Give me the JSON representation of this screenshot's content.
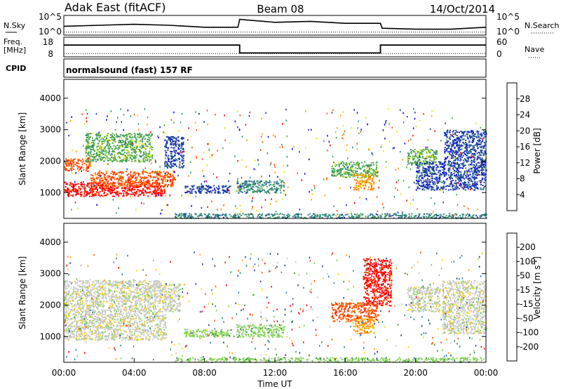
{
  "header": {
    "station": "Adak East (fitACF)",
    "beam": "Beam 08",
    "date": "14/Oct/2014"
  },
  "chart_data": [
    {
      "type": "line",
      "panel": "noise",
      "left_label": "N.Sky",
      "right_label": "N.Search",
      "left_ticks": [
        "10^5",
        "10^0"
      ],
      "right_ticks": [
        "10^5",
        "10^0"
      ],
      "x_hours": [
        0,
        2,
        4,
        6,
        8,
        9.9,
        10,
        12,
        14,
        16,
        18,
        18.1,
        20,
        22,
        24
      ],
      "n_sky": [
        0.45,
        0.5,
        0.55,
        0.5,
        0.4,
        0.4,
        0.8,
        0.65,
        0.7,
        0.6,
        0.6,
        0.35,
        0.3,
        0.3,
        0.4
      ],
      "n_search": [
        0.15,
        0.15,
        0.15,
        0.15,
        0.15,
        0.15,
        0.15,
        0.15,
        0.15,
        0.15,
        0.15,
        0.15,
        0.15,
        0.15,
        0.15
      ]
    },
    {
      "type": "line",
      "panel": "frequency",
      "left_label_1": "Freq.",
      "left_label_2": "[MHz]",
      "right_label": "Nave",
      "left_ticks": [
        "18",
        "8"
      ],
      "right_ticks": [
        "60",
        "0"
      ],
      "x_hours": [
        0,
        10,
        10,
        18,
        18,
        24
      ],
      "freq_mhz": [
        14,
        14,
        10,
        10,
        14,
        14
      ],
      "nave": [
        10,
        10,
        10,
        10,
        10,
        10
      ]
    },
    {
      "type": "heatmap",
      "panel": "cpid",
      "label": "CPID",
      "program": "normalsound (fast) 157 RF"
    },
    {
      "type": "heatmap",
      "panel": "power",
      "ylabel": "Slant Range [km]",
      "colorbar_label": "Power [dB]",
      "colorbar_ticks": [
        "28",
        "24",
        "20",
        "16",
        "12",
        "8",
        "4"
      ],
      "colorbar_colors": [
        "#ff0000",
        "#ff5000",
        "#ff9a00",
        "#e8e800",
        "#4aa84a",
        "#2f8a7a",
        "#1a3aa0",
        "#0000ff"
      ],
      "y_ticks": [
        "4000",
        "3000",
        "2000",
        "1000"
      ],
      "ylim": [
        180,
        4600
      ],
      "echo_regions": [
        {
          "t0": 0,
          "t1": 5.7,
          "r0": 900,
          "r1": 1350,
          "level": 0
        },
        {
          "t0": 1.5,
          "t1": 6.3,
          "r0": 1200,
          "r1": 1700,
          "level": 1
        },
        {
          "t0": 0,
          "t1": 1.5,
          "r0": 1700,
          "r1": 2100,
          "level": 1
        },
        {
          "t0": 1.2,
          "t1": 5.0,
          "r0": 2000,
          "r1": 2900,
          "level": 4
        },
        {
          "t0": 5.7,
          "t1": 6.8,
          "r0": 1800,
          "r1": 2800,
          "level": 6
        },
        {
          "t0": 6.8,
          "t1": 9.5,
          "r0": 1000,
          "r1": 1250,
          "level": 6
        },
        {
          "t0": 9.8,
          "t1": 12.5,
          "r0": 1000,
          "r1": 1400,
          "level": 5
        },
        {
          "t0": 15.2,
          "t1": 17.8,
          "r0": 1500,
          "r1": 2000,
          "level": 4
        },
        {
          "t0": 16.4,
          "t1": 17.6,
          "r0": 1100,
          "r1": 1600,
          "level": 2
        },
        {
          "t0": 19.5,
          "t1": 21.2,
          "r0": 1900,
          "r1": 2400,
          "level": 4
        },
        {
          "t0": 20.0,
          "t1": 24.0,
          "r0": 1100,
          "r1": 2000,
          "level": 6
        },
        {
          "t0": 21.6,
          "t1": 24.0,
          "r0": 2000,
          "r1": 3000,
          "level": 6
        },
        {
          "t0": 6.3,
          "t1": 24.0,
          "r0": 200,
          "r1": 350,
          "level": 5
        }
      ]
    },
    {
      "type": "heatmap",
      "panel": "velocity",
      "ylabel": "Slant Range [km]",
      "colorbar_label": "Velocity [m s",
      "colorbar_label_sup": "-1",
      "colorbar_label_end": "]",
      "colorbar_ticks": [
        "200",
        "100",
        "50",
        "15",
        "-15",
        "-50",
        "-100",
        "-200"
      ],
      "colorbar_colors": [
        "#1a3aa0",
        "#2a7ab0",
        "#2f8a4a",
        "#7ed44a",
        "#c8c8c8",
        "#ffd200",
        "#ff9a00",
        "#ff5000",
        "#ff0000"
      ],
      "y_ticks": [
        "4000",
        "3000",
        "2000",
        "1000"
      ],
      "ylim": [
        180,
        4600
      ],
      "x_ticks": [
        "00:00",
        "04:00",
        "08:00",
        "12:00",
        "16:00",
        "20:00",
        "00:00"
      ],
      "xlabel": "Time UT",
      "echo_regions": [
        {
          "t0": 0,
          "t1": 5.8,
          "r0": 900,
          "r1": 1700,
          "level": 4
        },
        {
          "t0": 0,
          "t1": 5.5,
          "r0": 1700,
          "r1": 2800,
          "level": 4
        },
        {
          "t0": 5.4,
          "t1": 6.6,
          "r0": 1800,
          "r1": 2700,
          "level": 4
        },
        {
          "t0": 6.8,
          "t1": 9.5,
          "r0": 1000,
          "r1": 1250,
          "level": 3
        },
        {
          "t0": 9.8,
          "t1": 12.5,
          "r0": 1000,
          "r1": 1400,
          "level": 3
        },
        {
          "t0": 15.2,
          "t1": 17.8,
          "r0": 1500,
          "r1": 2100,
          "level": 7
        },
        {
          "t0": 16.4,
          "t1": 17.6,
          "r0": 1100,
          "r1": 1600,
          "level": 6
        },
        {
          "t0": 17.0,
          "t1": 18.6,
          "r0": 2000,
          "r1": 3500,
          "level": 8
        },
        {
          "t0": 19.5,
          "t1": 21.4,
          "r0": 1800,
          "r1": 2600,
          "level": 4
        },
        {
          "t0": 21.5,
          "t1": 24.0,
          "r0": 1100,
          "r1": 2800,
          "level": 4
        },
        {
          "t0": 6.3,
          "t1": 24.0,
          "r0": 200,
          "r1": 350,
          "level": 3
        }
      ]
    }
  ]
}
